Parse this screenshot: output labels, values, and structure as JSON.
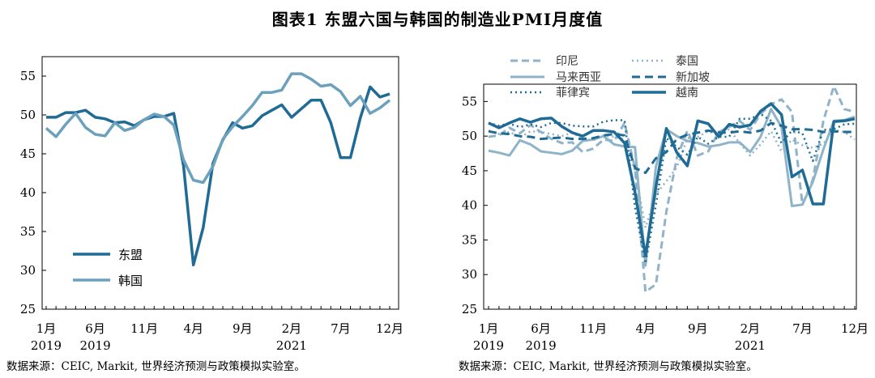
{
  "title": "图表1 东盟六国与韩国的制造业PMI月度值",
  "source_left": "数据来源：CEIC, Markit, 世界经济预测与政策模拟实验室。",
  "source_right": "数据来源：CEIC, Markit, 世界经济预测与政策模拟实验室。",
  "chart_data": [
    {
      "type": "line",
      "ylim": [
        25,
        57.5
      ],
      "yticks": [
        25,
        30,
        35,
        40,
        45,
        50,
        55
      ],
      "xrange": [
        0,
        35
      ],
      "xticks": [
        {
          "i": 0,
          "label": "1月",
          "year": "2019"
        },
        {
          "i": 5,
          "label": "6月",
          "year": "2019"
        },
        {
          "i": 10,
          "label": "11月",
          "year": ""
        },
        {
          "i": 15,
          "label": "4月",
          "year": ""
        },
        {
          "i": 20,
          "label": "9月",
          "year": ""
        },
        {
          "i": 25,
          "label": "2月",
          "year": "2021"
        },
        {
          "i": 30,
          "label": "7月",
          "year": ""
        },
        {
          "i": 35,
          "label": "12月",
          "year": ""
        }
      ],
      "series": [
        {
          "name": "东盟",
          "color": "#1f6b96",
          "dash": "",
          "width": 3.5,
          "values": [
            49.7,
            49.7,
            50.3,
            50.3,
            50.6,
            49.7,
            49.5,
            49.0,
            49.1,
            48.6,
            49.4,
            49.8,
            49.8,
            50.2,
            43.4,
            30.7,
            35.5,
            43.8,
            46.8,
            49.0,
            48.3,
            48.6,
            49.9,
            50.6,
            51.3,
            49.7,
            50.8,
            51.9,
            51.9,
            49.0,
            44.5,
            44.5,
            49.6,
            53.6,
            52.3,
            52.7
          ]
        },
        {
          "name": "韩国",
          "color": "#6ba1bd",
          "dash": "",
          "width": 3.5,
          "values": [
            48.3,
            47.2,
            48.8,
            50.2,
            48.4,
            47.5,
            47.3,
            49.0,
            48.0,
            48.4,
            49.4,
            50.1,
            49.8,
            48.7,
            44.2,
            41.6,
            41.3,
            43.4,
            46.9,
            48.5,
            49.8,
            51.2,
            52.9,
            52.9,
            53.2,
            55.3,
            55.3,
            54.6,
            53.7,
            53.9,
            53.0,
            51.2,
            52.4,
            50.2,
            50.9,
            51.9
          ]
        }
      ]
    },
    {
      "type": "line",
      "ylim": [
        25,
        57.5
      ],
      "yticks": [
        25,
        30,
        35,
        40,
        45,
        50,
        55
      ],
      "xrange": [
        0,
        35
      ],
      "xticks": [
        {
          "i": 0,
          "label": "1月",
          "year": "2019"
        },
        {
          "i": 5,
          "label": "6月",
          "year": "2019"
        },
        {
          "i": 10,
          "label": "11月",
          "year": ""
        },
        {
          "i": 15,
          "label": "4月",
          "year": ""
        },
        {
          "i": 20,
          "label": "9月",
          "year": ""
        },
        {
          "i": 25,
          "label": "2月",
          "year": "2021"
        },
        {
          "i": 30,
          "label": "7月",
          "year": ""
        },
        {
          "i": 35,
          "label": "12月",
          "year": ""
        }
      ],
      "series": [
        {
          "name": "印尼",
          "color": "#8fb3c9",
          "dash": "9,5",
          "width": 3,
          "values": [
            49.9,
            50.1,
            51.2,
            50.4,
            51.6,
            50.6,
            49.6,
            49.0,
            49.1,
            47.7,
            48.2,
            49.5,
            49.3,
            51.9,
            45.3,
            27.5,
            28.6,
            39.1,
            46.9,
            50.8,
            47.2,
            47.8,
            50.6,
            51.3,
            52.2,
            50.9,
            53.2,
            54.6,
            55.3,
            53.5,
            40.1,
            43.7,
            52.2,
            57.2,
            53.9,
            53.5
          ]
        },
        {
          "name": "泰国",
          "color": "#8fb3c9",
          "dash": "2,4",
          "width": 2.5,
          "values": [
            50.8,
            50.3,
            50.6,
            49.8,
            50.7,
            50.6,
            50.3,
            50.0,
            50.5,
            49.6,
            49.4,
            50.1,
            49.9,
            49.5,
            45.0,
            36.8,
            41.6,
            43.5,
            45.5,
            49.7,
            49.9,
            50.7,
            50.1,
            51.0,
            49.0,
            47.2,
            48.8,
            50.7,
            47.8,
            49.5,
            48.7,
            48.3,
            48.9,
            50.9,
            50.6,
            49.5
          ]
        },
        {
          "name": "马来西亚",
          "color": "#8fb3c9",
          "dash": "",
          "width": 3,
          "values": [
            47.9,
            47.6,
            47.2,
            49.4,
            48.8,
            47.8,
            47.6,
            47.4,
            47.9,
            49.3,
            49.5,
            50.0,
            48.8,
            48.5,
            48.4,
            31.3,
            45.6,
            51.0,
            50.0,
            49.3,
            49.0,
            48.5,
            48.7,
            49.1,
            49.1,
            47.7,
            49.9,
            53.9,
            51.3,
            39.9,
            40.1,
            43.4,
            48.1,
            52.2,
            52.3,
            52.8
          ]
        },
        {
          "name": "新加坡",
          "color": "#1f6b96",
          "dash": "10,6",
          "width": 3,
          "values": [
            50.7,
            50.4,
            50.3,
            50.0,
            49.9,
            49.6,
            49.7,
            49.8,
            49.6,
            49.6,
            49.7,
            50.1,
            50.3,
            50.1,
            45.4,
            44.7,
            46.8,
            47.7,
            49.6,
            50.2,
            50.5,
            50.8,
            50.5,
            50.5,
            50.7,
            50.5,
            50.8,
            51.9,
            51.5,
            51.0,
            51.0,
            50.9,
            50.6,
            50.7,
            50.6,
            50.6
          ]
        },
        {
          "name": "菲律宾",
          "color": "#1f6b96",
          "dash": "2,4",
          "width": 2.5,
          "values": [
            51.9,
            51.5,
            51.8,
            51.3,
            51.7,
            51.3,
            51.9,
            51.9,
            51.5,
            51.4,
            51.4,
            52.1,
            52.3,
            52.3,
            39.7,
            31.6,
            40.1,
            49.7,
            48.4,
            47.3,
            49.9,
            48.9,
            49.9,
            49.9,
            52.5,
            52.5,
            53.2,
            52.2,
            49.0,
            50.8,
            50.4,
            46.4,
            50.9,
            51.0,
            51.7,
            51.8
          ]
        },
        {
          "name": "越南",
          "color": "#1f6b96",
          "dash": "",
          "width": 3.5,
          "values": [
            51.9,
            51.2,
            51.9,
            52.5,
            52.0,
            52.5,
            52.6,
            51.4,
            50.5,
            50.0,
            50.8,
            50.8,
            50.6,
            49.0,
            41.9,
            32.7,
            42.7,
            51.1,
            47.6,
            45.7,
            52.2,
            51.8,
            49.9,
            51.7,
            51.3,
            51.6,
            53.6,
            54.7,
            53.1,
            44.1,
            45.1,
            40.2,
            40.2,
            52.1,
            52.2,
            52.5
          ]
        }
      ]
    }
  ]
}
